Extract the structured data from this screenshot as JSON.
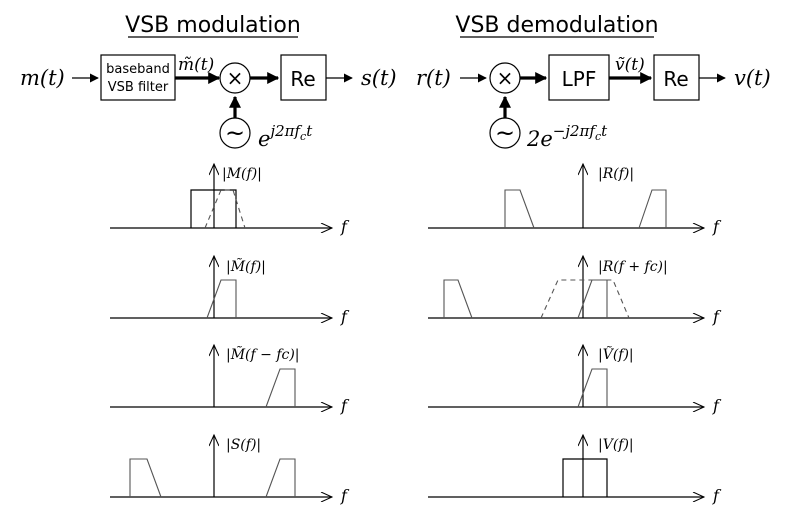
{
  "modulation": {
    "title": "VSB modulation",
    "input": "m(t)",
    "filter_line1": "baseband",
    "filter_line2": "VSB filter",
    "filtered": "m̃(t)",
    "mult": "×",
    "osc": "~",
    "carrier": "e",
    "carrier_exp": "j2πf",
    "carrier_sub": "c",
    "carrier_t": "t",
    "re": "Re",
    "output": "s(t)"
  },
  "demodulation": {
    "title": "VSB demodulation",
    "input": "r(t)",
    "mult": "×",
    "osc": "~",
    "carrier": "2e",
    "carrier_exp": "−j2πf",
    "carrier_sub": "c",
    "carrier_t": "t",
    "lpf": "LPF",
    "filtered": "ṽ(t)",
    "re": "Re",
    "output": "v(t)"
  },
  "spectra": {
    "axis_label": "f",
    "left": [
      "|M(f)|",
      "|M̃(f)|",
      "|M̃(f − fc)|",
      "|S(f)|"
    ],
    "right": [
      "|R(f)|",
      "|R(f + fc)|",
      "|Ṽ(f)|",
      "|V(f)|"
    ]
  }
}
